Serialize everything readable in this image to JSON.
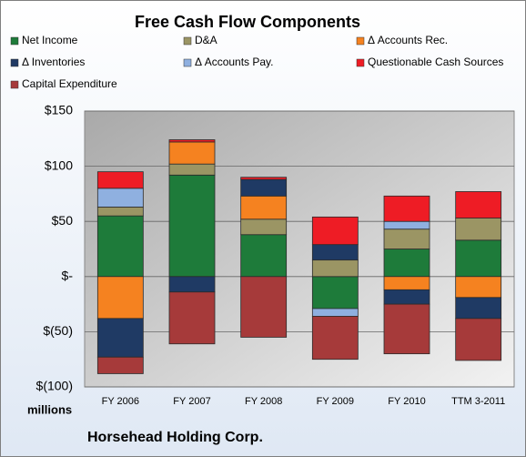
{
  "chart_data": {
    "type": "stacked_bar",
    "title": "Free Cash Flow Components",
    "categories": [
      "FY 2006",
      "FY 2007",
      "FY 2008",
      "FY 2009",
      "FY 2010",
      "TTM 3-2011"
    ],
    "series": [
      {
        "name": "Net Income",
        "color": "#1e7b3a",
        "values": [
          55,
          92,
          38,
          -29,
          25,
          33
        ]
      },
      {
        "name": "D&A",
        "color": "#9b9564",
        "values": [
          8,
          10,
          14,
          15,
          18,
          20
        ]
      },
      {
        "name": "Δ Accounts Rec.",
        "color": "#f58220",
        "values": [
          -38,
          20,
          21,
          0,
          -12,
          -19
        ]
      },
      {
        "name": "Δ Inventories",
        "color": "#1f3a64",
        "values": [
          -35,
          -14,
          15,
          14,
          -13,
          -19
        ]
      },
      {
        "name": "Δ Accounts Pay.",
        "color": "#8fb0e0",
        "values": [
          17,
          0,
          0,
          -7,
          7,
          0
        ]
      },
      {
        "name": "Questionable Cash Sources",
        "color": "#ee1c25",
        "values": [
          15,
          2,
          2,
          25,
          23,
          24
        ]
      },
      {
        "name": "Capital Expenditure",
        "color": "#a63a3a",
        "values": [
          -15,
          -47,
          -55,
          -39,
          -45,
          -38
        ]
      }
    ],
    "ylim": [
      -100,
      150
    ],
    "yticks": [
      {
        "value": -100,
        "label": "$(100)"
      },
      {
        "value": -50,
        "label": "$(50)"
      },
      {
        "value": 0,
        "label": "$-"
      },
      {
        "value": 50,
        "label": "$50"
      },
      {
        "value": 100,
        "label": "$100"
      },
      {
        "value": 150,
        "label": "$150"
      }
    ],
    "ylabel": "millions",
    "annotation": "Horsehead Holding Corp.",
    "grid": true
  }
}
